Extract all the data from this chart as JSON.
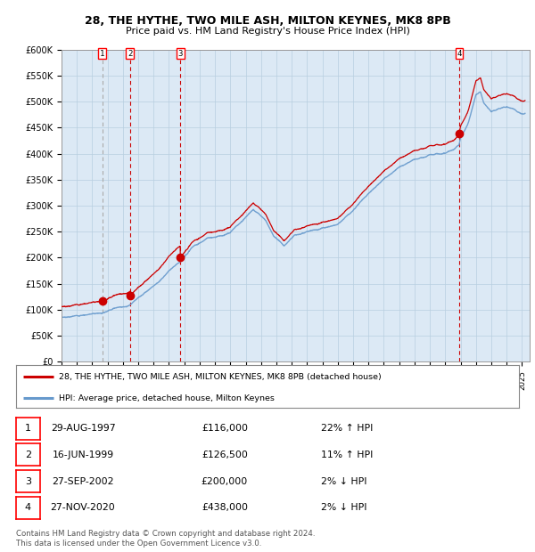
{
  "title_line1": "28, THE HYTHE, TWO MILE ASH, MILTON KEYNES, MK8 8PB",
  "title_line2": "Price paid vs. HM Land Registry's House Price Index (HPI)",
  "fig_bg_color": "#ffffff",
  "plot_bg_color": "#dce9f5",
  "hpi_color": "#6699cc",
  "price_color": "#cc0000",
  "sale_dot_color": "#cc0000",
  "grid_color": "#b8cfe0",
  "vline_colors": [
    "#aaaaaa",
    "#cc0000",
    "#cc0000",
    "#cc0000"
  ],
  "ylim": [
    0,
    600000
  ],
  "yticks": [
    0,
    50000,
    100000,
    150000,
    200000,
    250000,
    300000,
    350000,
    400000,
    450000,
    500000,
    550000,
    600000
  ],
  "ytick_labels": [
    "£0",
    "£50K",
    "£100K",
    "£150K",
    "£200K",
    "£250K",
    "£300K",
    "£350K",
    "£400K",
    "£450K",
    "£500K",
    "£550K",
    "£600K"
  ],
  "xlim": [
    1995.0,
    2025.5
  ],
  "xticks": [
    1995,
    1996,
    1997,
    1998,
    1999,
    2000,
    2001,
    2002,
    2003,
    2004,
    2005,
    2006,
    2007,
    2008,
    2009,
    2010,
    2011,
    2012,
    2013,
    2014,
    2015,
    2016,
    2017,
    2018,
    2019,
    2020,
    2021,
    2022,
    2023,
    2024,
    2025
  ],
  "sales": [
    {
      "num": 1,
      "date_x": 1997.66,
      "price": 116000,
      "label": "29-AUG-1997",
      "price_label": "£116,000",
      "pct": "22%",
      "dir": "↑"
    },
    {
      "num": 2,
      "date_x": 1999.46,
      "price": 126500,
      "label": "16-JUN-1999",
      "price_label": "£126,500",
      "pct": "11%",
      "dir": "↑"
    },
    {
      "num": 3,
      "date_x": 2002.74,
      "price": 200000,
      "label": "27-SEP-2002",
      "price_label": "£200,000",
      "pct": "2%",
      "dir": "↓"
    },
    {
      "num": 4,
      "date_x": 2020.9,
      "price": 438000,
      "label": "27-NOV-2020",
      "price_label": "£438,000",
      "pct": "2%",
      "dir": "↓"
    }
  ],
  "legend_entries": [
    "28, THE HYTHE, TWO MILE ASH, MILTON KEYNES, MK8 8PB (detached house)",
    "HPI: Average price, detached house, Milton Keynes"
  ],
  "footer_line1": "Contains HM Land Registry data © Crown copyright and database right 2024.",
  "footer_line2": "This data is licensed under the Open Government Licence v3.0."
}
